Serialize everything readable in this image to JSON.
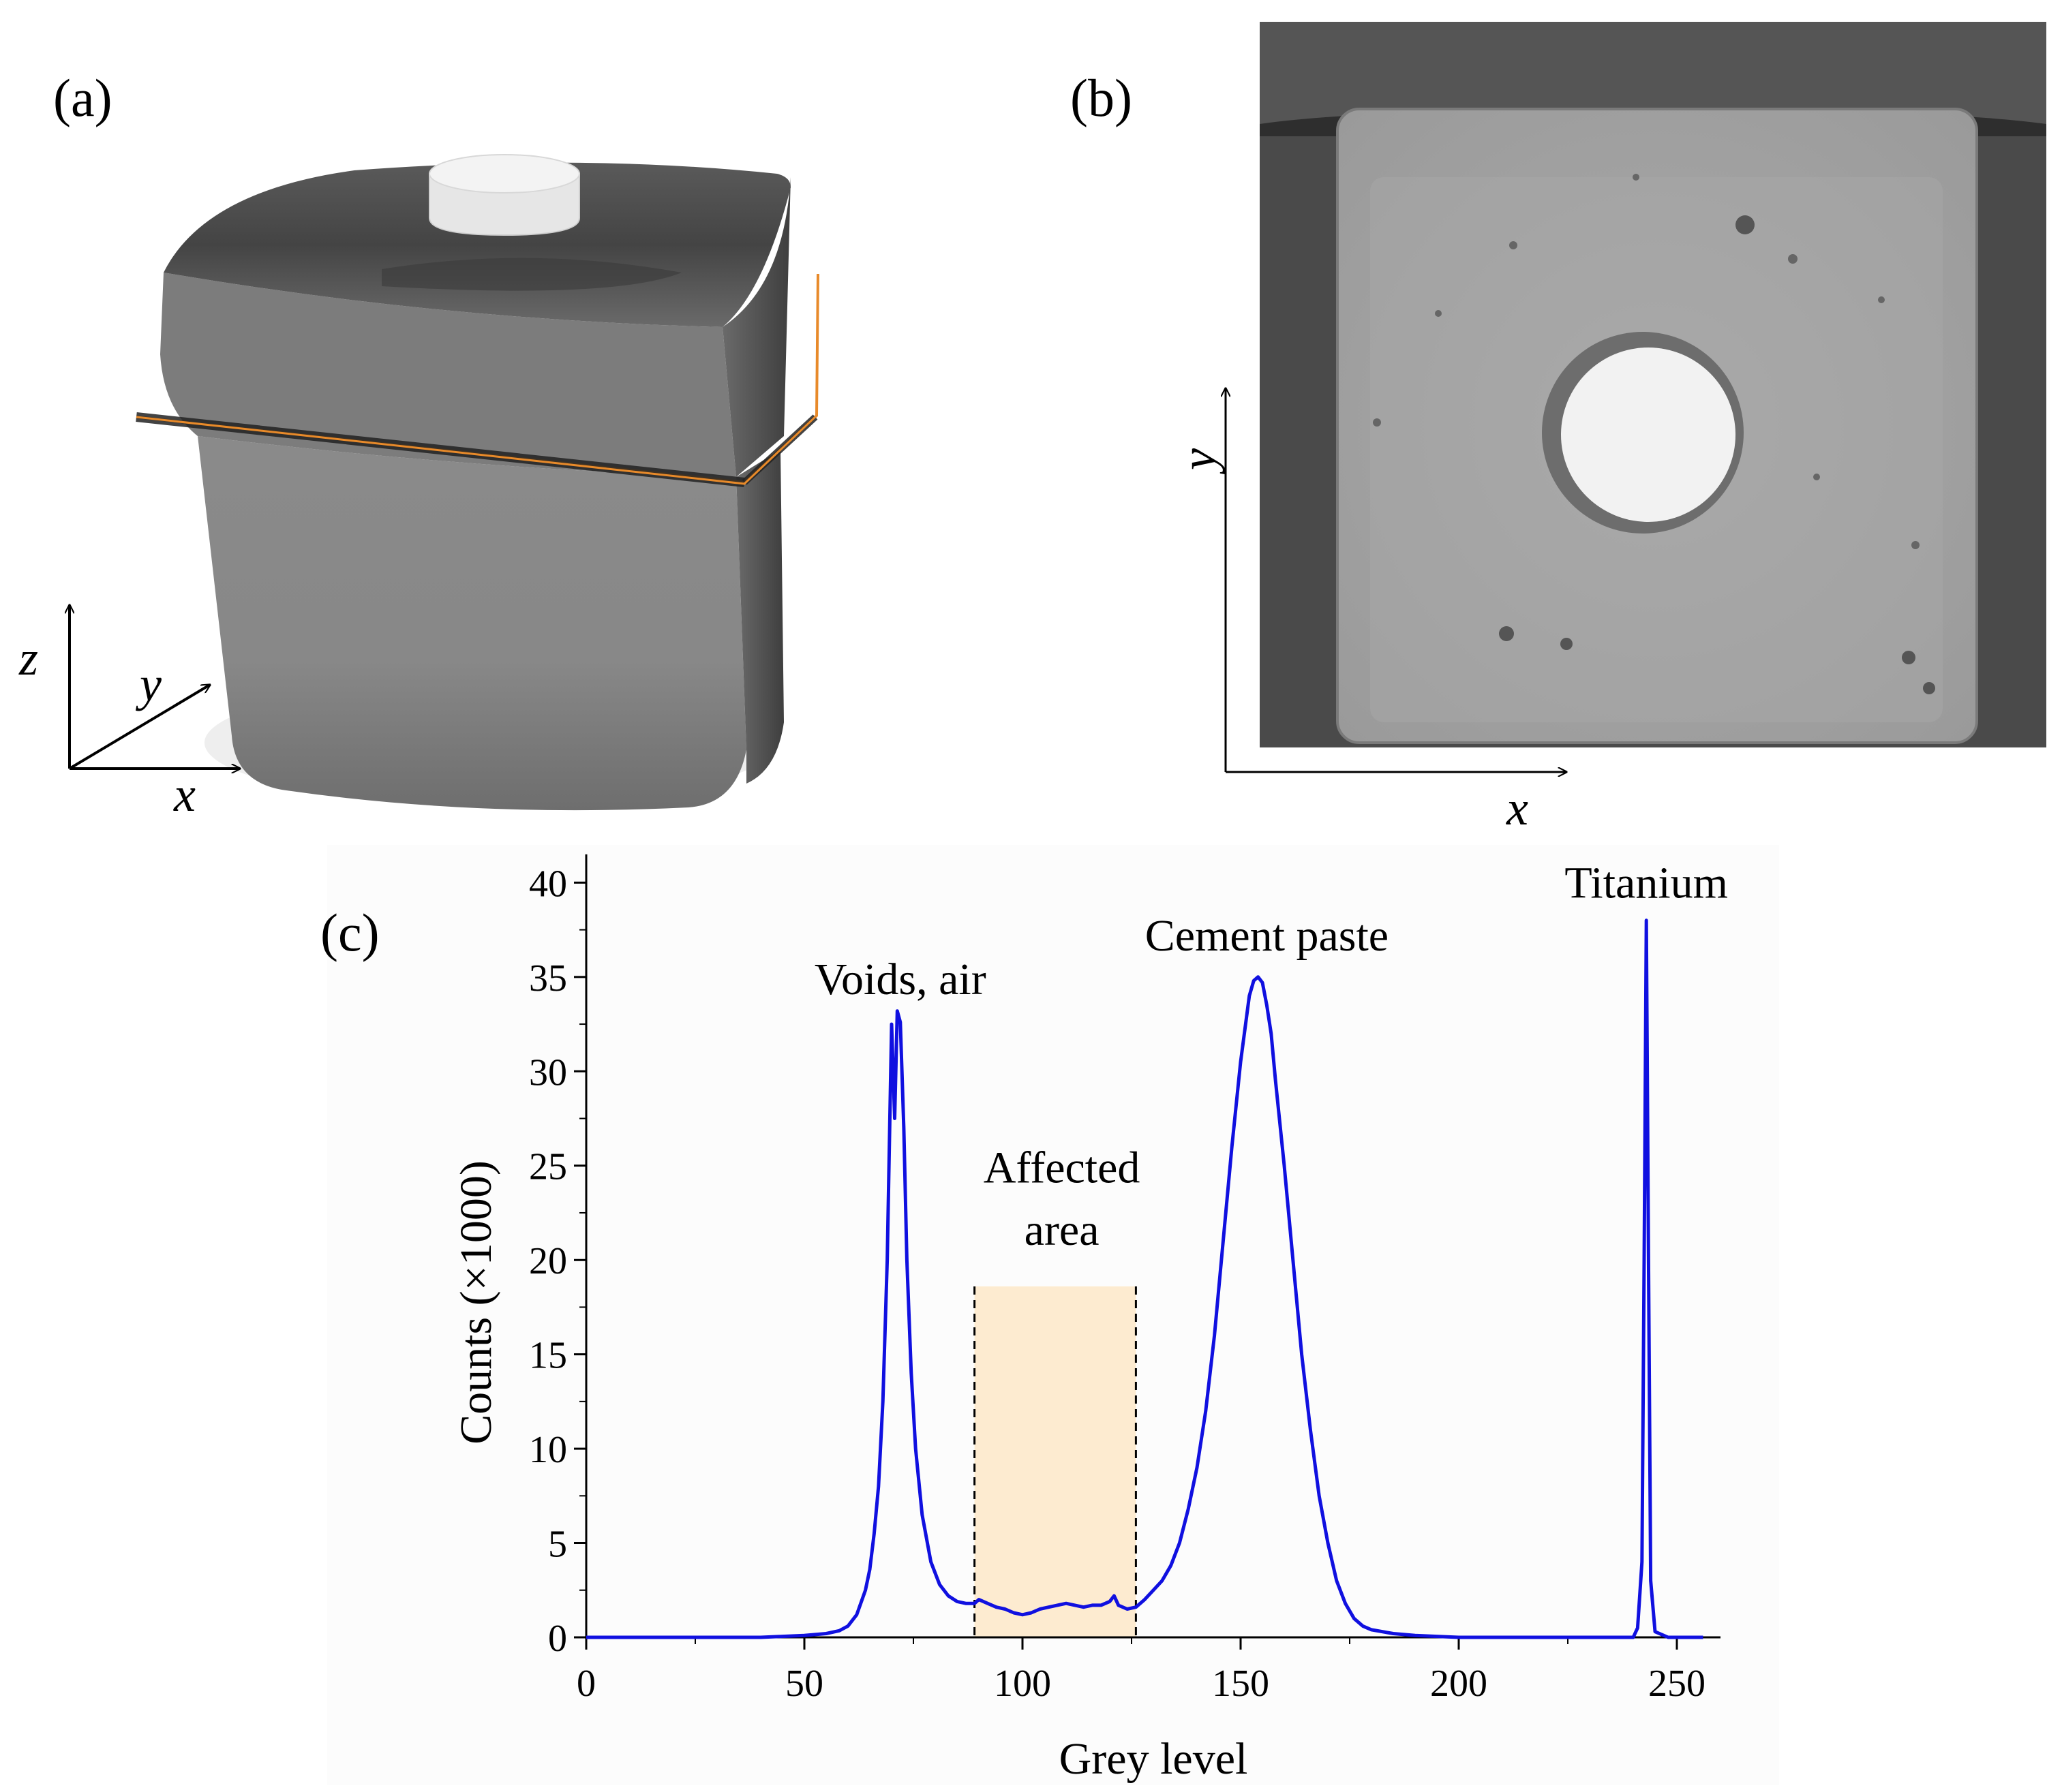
{
  "panels": {
    "a": {
      "label": "(a)",
      "axes": {
        "x": "x",
        "y": "y",
        "z": "z"
      }
    },
    "b": {
      "label": "(b)",
      "axes": {
        "x": "x",
        "y": "y"
      }
    },
    "c": {
      "label": "(c)"
    }
  },
  "chart_data": {
    "type": "line",
    "title": "",
    "xlabel": "Grey level",
    "ylabel": "Counts (×1000)",
    "xlim": [
      0,
      260
    ],
    "ylim": [
      0,
      42
    ],
    "xticks": [
      0,
      50,
      100,
      150,
      200,
      250
    ],
    "yticks": [
      0,
      5,
      10,
      15,
      20,
      25,
      30,
      35,
      40
    ],
    "grid": false,
    "line_color": "#1010e0",
    "shade_color": "#fdebd0",
    "shaded_region": {
      "x": [
        89,
        126
      ],
      "top": 18.6
    },
    "annotations": [
      {
        "id": "voids",
        "text": "Voids, air",
        "x": 72,
        "y": 34.1
      },
      {
        "id": "cement",
        "text": "Cement paste",
        "x": 156,
        "y": 36.4
      },
      {
        "id": "titanium",
        "text": "Titanium",
        "x": 243,
        "y": 39.2
      },
      {
        "id": "affected1",
        "text": "Affected",
        "x": 109,
        "y": 24.1
      },
      {
        "id": "affected2",
        "text": "area",
        "x": 109,
        "y": 20.8
      }
    ],
    "series": [
      {
        "x": [
          0,
          10,
          20,
          30,
          40,
          45,
          50,
          55,
          58,
          60,
          62,
          64,
          65,
          66,
          67,
          68,
          69,
          70,
          70.7,
          71.3,
          72,
          72.8,
          73.5,
          74.5,
          75.5,
          77,
          79,
          81,
          83,
          85,
          87,
          89,
          90,
          92,
          94,
          96,
          98,
          100,
          102,
          104,
          106,
          108,
          110,
          112,
          114,
          116,
          118,
          120,
          121,
          122,
          124,
          126,
          128,
          130,
          132,
          134,
          136,
          138,
          140,
          142,
          144,
          146,
          148,
          150,
          152,
          153,
          154,
          155,
          156,
          157,
          158,
          160,
          162,
          164,
          166,
          168,
          170,
          172,
          174,
          176,
          178,
          180,
          185,
          190,
          200,
          220,
          240,
          241,
          242,
          242.5,
          243,
          243.5,
          244,
          245,
          248,
          256
        ],
        "y": [
          0,
          0,
          0,
          0,
          0,
          0.05,
          0.1,
          0.2,
          0.35,
          0.6,
          1.2,
          2.5,
          3.6,
          5.5,
          8,
          12.5,
          20,
          32.5,
          27.5,
          33.2,
          32.6,
          27,
          20,
          14,
          10,
          6.5,
          4,
          2.8,
          2.2,
          1.9,
          1.8,
          1.8,
          2.0,
          1.8,
          1.6,
          1.5,
          1.3,
          1.2,
          1.3,
          1.5,
          1.6,
          1.7,
          1.8,
          1.7,
          1.6,
          1.7,
          1.7,
          1.9,
          2.2,
          1.7,
          1.5,
          1.6,
          2.0,
          2.5,
          3.0,
          3.8,
          5,
          6.8,
          9,
          12,
          16,
          21,
          26,
          30.5,
          34,
          34.8,
          35,
          34.7,
          33.5,
          32,
          29.5,
          25,
          20,
          15,
          11,
          7.5,
          5,
          3,
          1.8,
          1,
          0.6,
          0.4,
          0.2,
          0.1,
          0,
          0,
          0,
          0.5,
          4,
          20,
          38,
          20,
          3,
          0.3,
          0,
          0
        ]
      }
    ]
  }
}
